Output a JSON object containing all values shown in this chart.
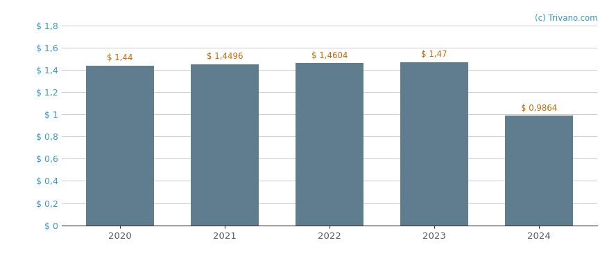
{
  "categories": [
    "2020",
    "2021",
    "2022",
    "2023",
    "2024"
  ],
  "values": [
    1.44,
    1.4496,
    1.4604,
    1.47,
    0.9864
  ],
  "labels": [
    "$ 1,44",
    "$ 1,4496",
    "$ 1,4604",
    "$ 1,47",
    "$ 0,9864"
  ],
  "bar_color": "#607d8f",
  "background_color": "#ffffff",
  "ylim": [
    0,
    1.8
  ],
  "yticks": [
    0,
    0.2,
    0.4,
    0.6,
    0.8,
    1.0,
    1.2,
    1.4,
    1.6,
    1.8
  ],
  "ytick_labels": [
    "$ 0",
    "$ 0,2",
    "$ 0,4",
    "$ 0,6",
    "$ 0,8",
    "$ 1",
    "$ 1,2",
    "$ 1,4",
    "$ 1,6",
    "$ 1,8"
  ],
  "watermark": "(c) Trivano.com",
  "watermark_color": "#3399cc",
  "label_color": "#cc6600",
  "ytick_color": "#3399cc",
  "grid_color": "#cccccc",
  "axis_color": "#333333",
  "xtick_color": "#555555",
  "bar_width": 0.65,
  "figsize": [
    8.88,
    3.7
  ],
  "dpi": 100
}
